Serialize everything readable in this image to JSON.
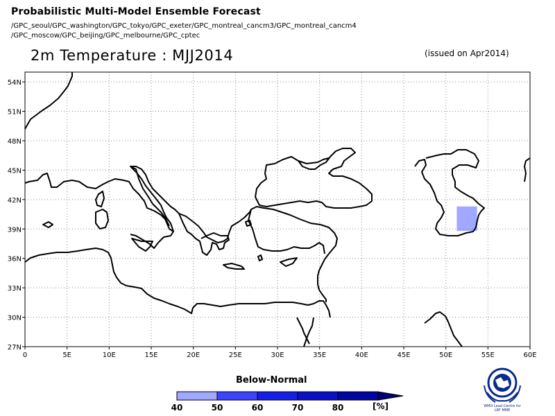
{
  "header": {
    "title": "Probabilistic Multi-Model Ensemble Forecast",
    "models_line1": "/GPC_seoul/GPC_washington/GPC_tokyo/GPC_exeter/GPC_montreal_cancm3/GPC_montreal_cancm4",
    "models_line2": "/GPC_moscow/GPC_beijing/GPC_melbourne/GPC_cptec",
    "variable_title": "2m Temperature : MJJ2014",
    "issued": "(issued on Apr2014)"
  },
  "map": {
    "lon_range": [
      0,
      60
    ],
    "lat_range": [
      27,
      55
    ],
    "lon_ticks": [
      {
        "value": 0,
        "label": "0"
      },
      {
        "value": 5,
        "label": "5E"
      },
      {
        "value": 10,
        "label": "10E"
      },
      {
        "value": 15,
        "label": "15E"
      },
      {
        "value": 20,
        "label": "20E"
      },
      {
        "value": 25,
        "label": "25E"
      },
      {
        "value": 30,
        "label": "30E"
      },
      {
        "value": 35,
        "label": "35E"
      },
      {
        "value": 40,
        "label": "40E"
      },
      {
        "value": 45,
        "label": "45E"
      },
      {
        "value": 50,
        "label": "50E"
      },
      {
        "value": 55,
        "label": "55E"
      },
      {
        "value": 60,
        "label": "60E"
      }
    ],
    "lat_ticks": [
      {
        "value": 27,
        "label": "27N"
      },
      {
        "value": 30,
        "label": "30N"
      },
      {
        "value": 33,
        "label": "33N"
      },
      {
        "value": 36,
        "label": "36N"
      },
      {
        "value": 39,
        "label": "39N"
      },
      {
        "value": 42,
        "label": "42N"
      },
      {
        "value": 45,
        "label": "45N"
      },
      {
        "value": 48,
        "label": "48N"
      },
      {
        "value": 51,
        "label": "51N"
      },
      {
        "value": 54,
        "label": "54N"
      }
    ],
    "grid": "dotted",
    "shaded_cells": [
      {
        "lon_min": 51.3,
        "lon_max": 53.7,
        "lat_min": 38.8,
        "lat_max": 41.3,
        "category": "Below-Normal",
        "range": "40-50",
        "color": "#a0a8ff"
      }
    ]
  },
  "legend": {
    "title": "Below-Normal",
    "unit": "[%]",
    "bins": [
      {
        "label": "40",
        "color": "#a0a8ff"
      },
      {
        "label": "50",
        "color": "#3c44ff"
      },
      {
        "label": "60",
        "color": "#1420e6"
      },
      {
        "label": "70",
        "color": "#0a10c8"
      },
      {
        "label": "80",
        "color": "#0006a0"
      }
    ],
    "end_label_positions": [
      "40",
      "50",
      "60",
      "70",
      "80"
    ],
    "overflow_color": "#000078"
  },
  "logo": {
    "line1": "WMO Lead Centre for",
    "line2": "LRF MME",
    "icon": "wmo-emblem-icon"
  }
}
